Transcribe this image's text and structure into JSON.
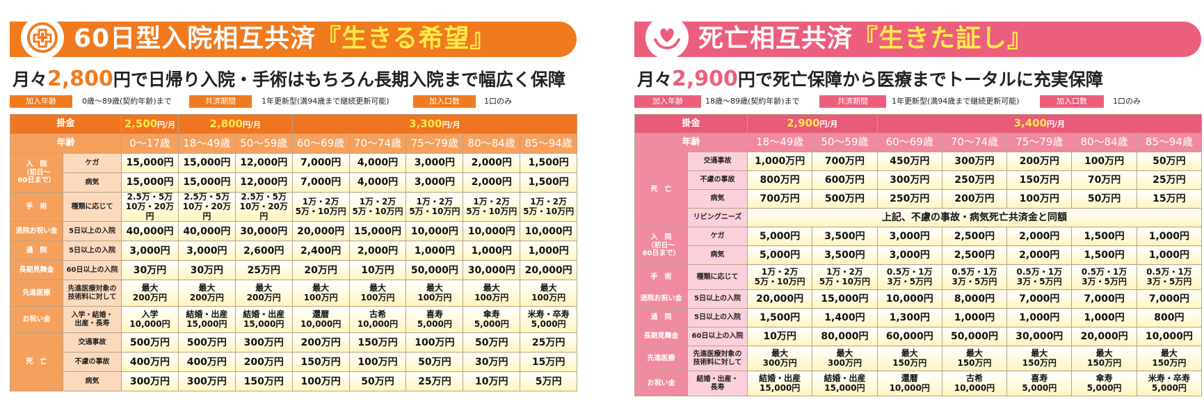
{
  "left": {
    "title_main": "60日型入院相互共済",
    "title_highlight": "『生きる希望』",
    "tagline_prefix": "月々",
    "tagline_amount": "2,800",
    "tagline_suffix": "円で日帰り入院・手術はもちろん長期入院まで幅広く保障",
    "info": [
      {
        "label": "加入年齢",
        "value": "0歳〜89歳(契約年齢)まで"
      },
      {
        "label": "共済期間",
        "value": "1年更新型(満94歳まで継続更新可能)"
      },
      {
        "label": "加入口数",
        "value": "1口のみ"
      }
    ],
    "premium_label": "掛金",
    "age_label": "年齢",
    "premiums": [
      "2,500",
      "2,800",
      "3,300"
    ],
    "premium_unit": "円/月",
    "ages": [
      "0〜17歳",
      "18〜49歳",
      "50〜59歳",
      "60〜69歳",
      "70〜74歳",
      "75〜79歳",
      "80〜84歳",
      "85〜94歳"
    ],
    "rows": [
      {
        "cat": "入　院\n（初日〜\n60日まで）",
        "sub": "ケガ",
        "vals": [
          "15,000円",
          "15,000円",
          "12,000円",
          "7,000円",
          "4,000円",
          "3,000円",
          "2,000円",
          "1,500円"
        ]
      },
      {
        "sub": "病気",
        "vals": [
          "15,000円",
          "15,000円",
          "12,000円",
          "7,000円",
          "4,000円",
          "3,000円",
          "2,000円",
          "1,500円"
        ]
      },
      {
        "cat": "手　術",
        "sub": "種類に応じて",
        "vals": [
          "2.5万・5万\n10万・20万円",
          "2.5万・5万\n10万・20万円",
          "2.5万・5万\n10万・20万円",
          "1万・2万\n5万・10万円",
          "1万・2万\n5万・10万円",
          "1万・2万\n5万・10万円",
          "1万・2万\n5万・10万円",
          "1万・2万\n5万・10万円"
        ]
      },
      {
        "cat": "退院お祝い金",
        "sub": "5日以上の入院",
        "vals": [
          "40,000円",
          "40,000円",
          "30,000円",
          "20,000円",
          "15,000円",
          "10,000円",
          "10,000円",
          "10,000円"
        ]
      },
      {
        "cat": "通　院",
        "sub": "5日以上の入院",
        "vals": [
          "3,000円",
          "3,000円",
          "2,600円",
          "2,400円",
          "2,000円",
          "1,000円",
          "1,000円",
          "1,000円"
        ]
      },
      {
        "cat": "長期見舞金",
        "sub": "60日以上の入院",
        "vals": [
          "30万円",
          "30万円",
          "25万円",
          "20万円",
          "10万円",
          "50,000円",
          "30,000円",
          "20,000円"
        ]
      },
      {
        "cat": "先進医療",
        "sub": "先進医療対象の\n技術料に対して",
        "vals": [
          "最大\n200万円",
          "最大\n200万円",
          "最大\n200万円",
          "最大\n100万円",
          "最大\n100万円",
          "最大\n100万円",
          "最大\n100万円",
          "最大\n100万円"
        ]
      },
      {
        "cat": "お祝い金",
        "sub": "入学・結婚・\n出産・長寿",
        "vals": [
          "入学\n10,000円",
          "結婚・出産\n15,000円",
          "結婚・出産\n15,000円",
          "還暦\n10,000円",
          "古希\n10,000円",
          "喜寿\n5,000円",
          "傘寿\n5,000円",
          "米寿・卒寿\n5,000円"
        ]
      },
      {
        "cat": "死　亡",
        "sub": "交通事故",
        "vals": [
          "500万円",
          "500万円",
          "300万円",
          "200万円",
          "150万円",
          "100万円",
          "50万円",
          "25万円"
        ]
      },
      {
        "sub": "不慮の事故",
        "vals": [
          "400万円",
          "400万円",
          "200万円",
          "150万円",
          "100万円",
          "50万円",
          "30万円",
          "15万円"
        ]
      },
      {
        "sub": "病気",
        "vals": [
          "300万円",
          "300万円",
          "150万円",
          "100万円",
          "50万円",
          "25万円",
          "10万円",
          "5万円"
        ]
      }
    ]
  },
  "right": {
    "title_main": "死亡相互共済",
    "title_highlight": "『生きた証し』",
    "tagline_prefix": "月々",
    "tagline_amount": "2,900",
    "tagline_suffix": "円で死亡保障から医療までトータルに充実保障",
    "info": [
      {
        "label": "加入年齢",
        "value": "18歳〜89歳(契約年齢)まで"
      },
      {
        "label": "共済期間",
        "value": "1年更新型(満94歳まで継続更新可能)"
      },
      {
        "label": "加入口数",
        "value": "1口のみ"
      }
    ],
    "premium_label": "掛金",
    "age_label": "年齢",
    "premiums": [
      "2,900",
      "3,400"
    ],
    "premium_unit": "円/月",
    "ages": [
      "18〜49歳",
      "50〜59歳",
      "60〜69歳",
      "70〜74歳",
      "75〜79歳",
      "80〜84歳",
      "85〜94歳"
    ],
    "living_needs_label": "リビングニーズ",
    "living_needs_text": "上記、不慮の事故・病気死亡共済金と同額",
    "rows": [
      {
        "cat": "死　亡",
        "sub": "交通事故",
        "vals": [
          "1,000万円",
          "700万円",
          "450万円",
          "300万円",
          "200万円",
          "100万円",
          "50万円"
        ]
      },
      {
        "sub": "不慮の事故",
        "vals": [
          "800万円",
          "600万円",
          "300万円",
          "250万円",
          "150万円",
          "70万円",
          "25万円"
        ]
      },
      {
        "sub": "病気",
        "vals": [
          "700万円",
          "500万円",
          "250万円",
          "200万円",
          "100万円",
          "50万円",
          "15万円"
        ]
      },
      {
        "cat": "入　院\n（初日〜\n60日まで）",
        "sub": "ケガ",
        "vals": [
          "5,000円",
          "3,500円",
          "3,000円",
          "2,500円",
          "2,000円",
          "1,500円",
          "1,000円"
        ]
      },
      {
        "sub": "病気",
        "vals": [
          "5,000円",
          "3,500円",
          "3,000円",
          "2,500円",
          "2,000円",
          "1,500円",
          "1,000円"
        ]
      },
      {
        "cat": "手　術",
        "sub": "種類に応じて",
        "vals": [
          "1万・2万\n5万・10万円",
          "1万・2万\n5万・10万円",
          "0.5万・1万\n3万・5万円",
          "0.5万・1万\n3万・5万円",
          "0.5万・1万\n3万・5万円",
          "0.5万・1万\n3万・5万円",
          "0.5万・1万\n3万・5万円"
        ]
      },
      {
        "cat": "退院お祝い金",
        "sub": "5日以上の入院",
        "vals": [
          "20,000円",
          "15,000円",
          "10,000円",
          "8,000円",
          "7,000円",
          "7,000円",
          "7,000円"
        ]
      },
      {
        "cat": "通　院",
        "sub": "5日以上の入院",
        "vals": [
          "1,500円",
          "1,400円",
          "1,300円",
          "1,000円",
          "1,000円",
          "1,000円",
          "800円"
        ]
      },
      {
        "cat": "長期見舞金",
        "sub": "60日以上の入院",
        "vals": [
          "10万円",
          "80,000円",
          "60,000円",
          "50,000円",
          "30,000円",
          "20,000円",
          "10,000円"
        ]
      },
      {
        "cat": "先進医療",
        "sub": "先進医療対象の\n技術料に対して",
        "vals": [
          "最大\n300万円",
          "最大\n300万円",
          "最大\n150万円",
          "最大\n150万円",
          "最大\n150万円",
          "最大\n150万円",
          "最大\n150万円"
        ]
      },
      {
        "cat": "お祝い金",
        "sub": "結婚・出産・\n長寿",
        "vals": [
          "結婚・出産\n15,000円",
          "結婚・出産\n15,000円",
          "還暦\n10,000円",
          "古希\n10,000円",
          "喜寿\n5,000円",
          "傘寿\n5,000円",
          "米寿・卒寿\n5,000円"
        ]
      }
    ]
  },
  "colors": {
    "orange": "#f07a1e",
    "pink": "#ec5f7c",
    "highlight": "#ffe94a"
  },
  "icons": {
    "left": "hospital-cross-icon",
    "right": "heart-hands-icon"
  }
}
